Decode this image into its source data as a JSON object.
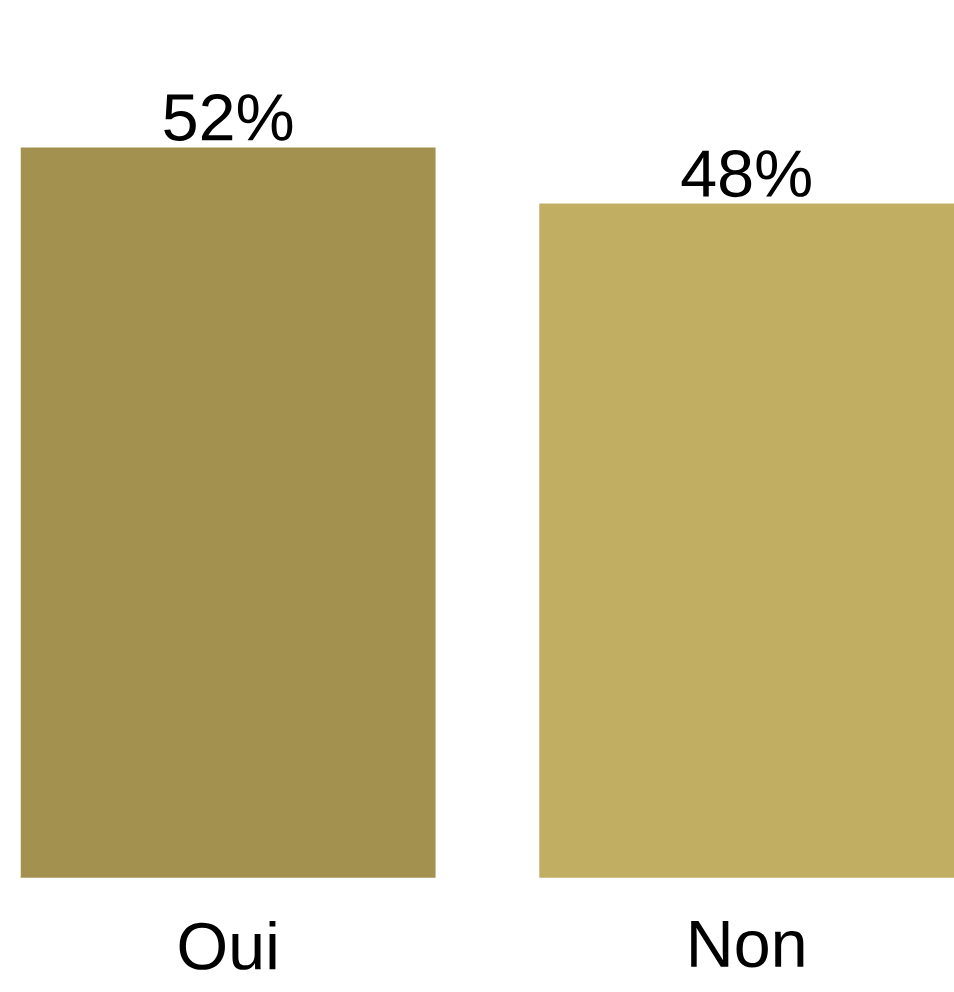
{
  "chart_data": {
    "type": "bar",
    "categories": [
      "Oui",
      "Non"
    ],
    "values": [
      52,
      48
    ],
    "colors": [
      "#a39150",
      "#c2ae63"
    ],
    "value_labels": [
      "52%",
      "48%"
    ]
  }
}
